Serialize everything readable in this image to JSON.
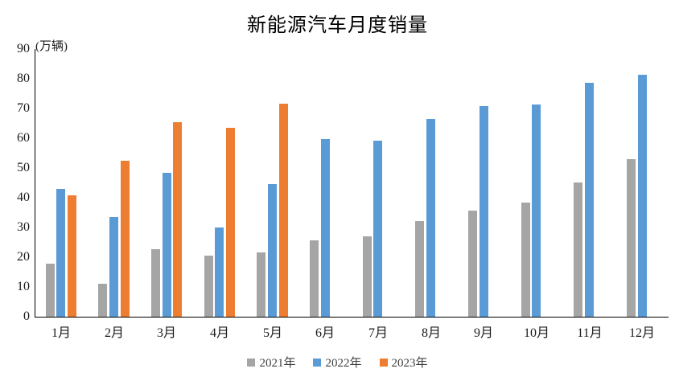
{
  "chart_data": {
    "type": "bar",
    "title": "新能源汽车月度销量",
    "unit_label": "(万辆)",
    "categories": [
      "1月",
      "2月",
      "3月",
      "4月",
      "5月",
      "6月",
      "7月",
      "8月",
      "9月",
      "10月",
      "11月",
      "12月"
    ],
    "series": [
      {
        "name": "2021年",
        "color": "#A5A5A5",
        "values": [
          17.9,
          11.0,
          22.6,
          20.6,
          21.7,
          25.6,
          27.1,
          32.1,
          35.7,
          38.3,
          45.0,
          53.1
        ]
      },
      {
        "name": "2022年",
        "color": "#5B9BD5",
        "values": [
          43.1,
          33.4,
          48.4,
          29.9,
          44.7,
          59.6,
          59.3,
          66.6,
          70.8,
          71.4,
          78.6,
          81.4
        ]
      },
      {
        "name": "2023年",
        "color": "#ED7D31",
        "values": [
          40.8,
          52.5,
          65.3,
          63.6,
          71.7,
          null,
          null,
          null,
          null,
          null,
          null,
          null
        ]
      }
    ],
    "ylim": [
      0,
      90
    ],
    "y_ticks": [
      0,
      10,
      20,
      30,
      40,
      50,
      60,
      70,
      80,
      90
    ],
    "grid": "off",
    "legend_position": "bottom",
    "axis_color": "#000000",
    "background_color": "#ffffff"
  }
}
